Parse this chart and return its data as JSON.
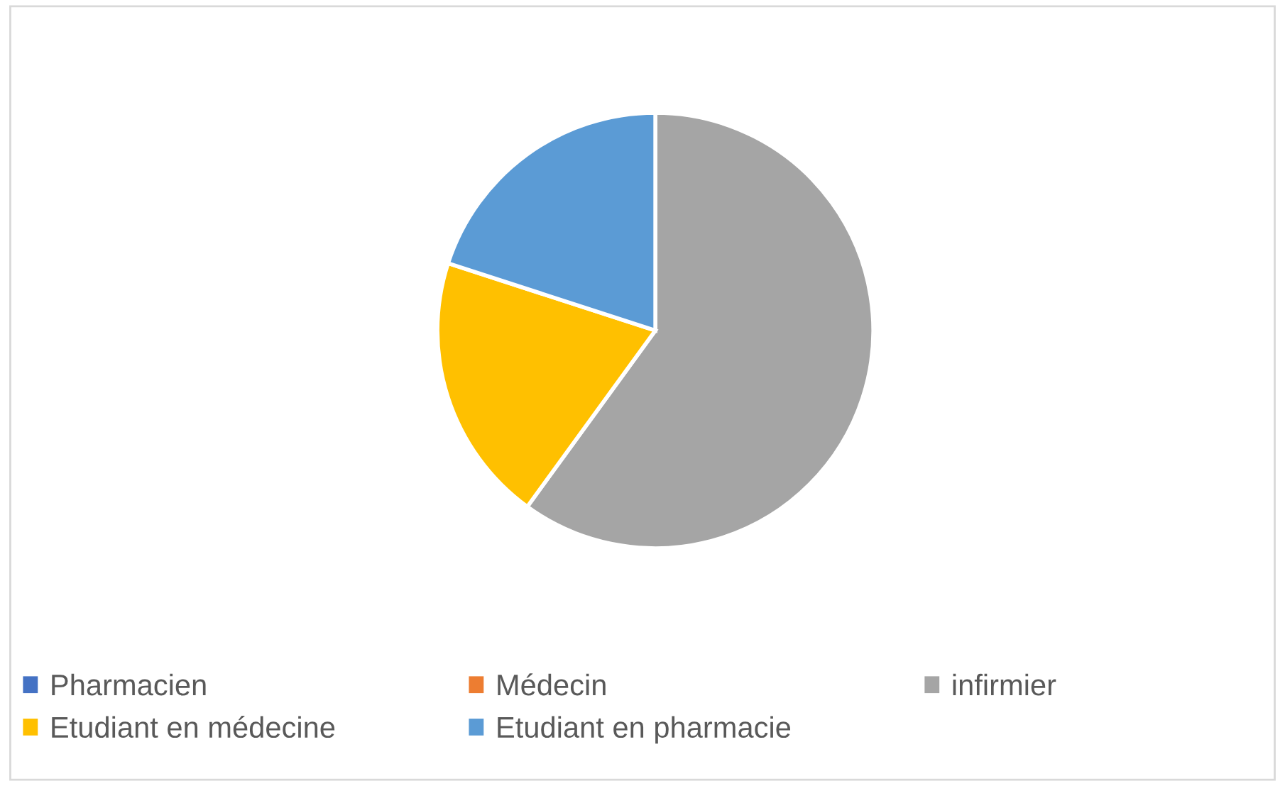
{
  "chart_data": {
    "type": "pie",
    "categories": [
      "Pharmacien",
      "Médecin",
      "infirmier",
      "Etudiant en médecine",
      "Etudiant en pharmacie"
    ],
    "values": [
      0,
      0,
      60,
      20,
      20
    ],
    "colors": [
      "#4472c4",
      "#ed7d31",
      "#a5a5a5",
      "#ffc000",
      "#5b9bd5"
    ],
    "legend": "bottom"
  }
}
